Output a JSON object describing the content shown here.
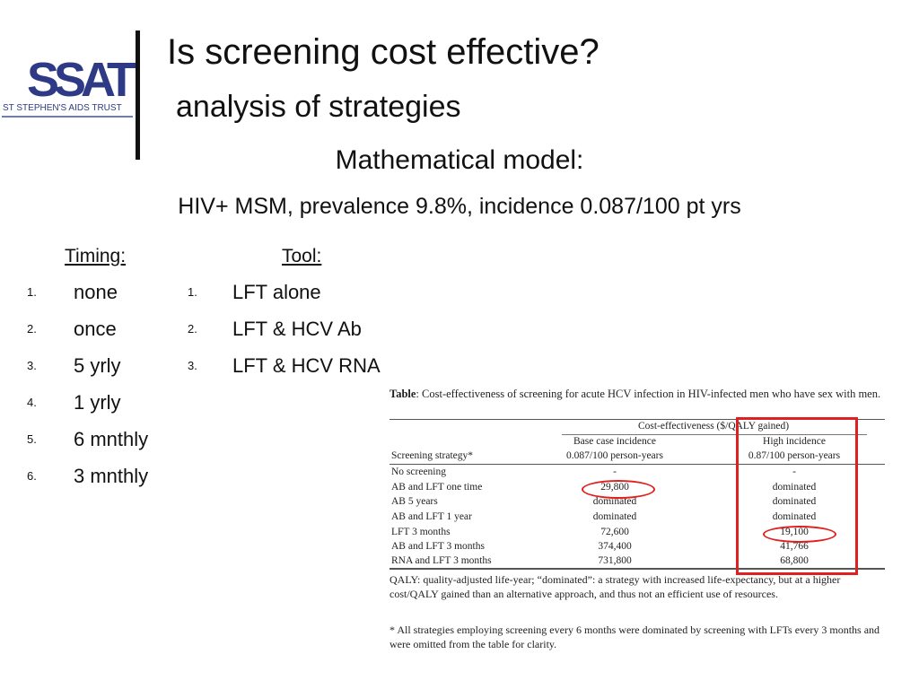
{
  "logo": {
    "letters": "SSAT",
    "tagline": "ST STEPHEN'S AIDS TRUST"
  },
  "title": "Is screening cost effective?",
  "subtitle": "analysis of strategies",
  "model_heading": "Mathematical model:",
  "model_details": "HIV+ MSM, prevalence 9.8%, incidence 0.087/100 pt yrs",
  "timing": {
    "heading": "Timing:",
    "items": [
      {
        "num": "1.",
        "text": "none"
      },
      {
        "num": "2.",
        "text": "once"
      },
      {
        "num": "3.",
        "text": "5 yrly"
      },
      {
        "num": "4.",
        "text": "1 yrly"
      },
      {
        "num": "5.",
        "text": "6 mnthly"
      },
      {
        "num": "6.",
        "text": "3 mnthly"
      }
    ]
  },
  "tool": {
    "heading": "Tool:",
    "items": [
      {
        "num": "1.",
        "text": "LFT alone"
      },
      {
        "num": "2.",
        "text": "LFT & HCV Ab"
      },
      {
        "num": "3.",
        "text": "LFT & HCV RNA"
      }
    ]
  },
  "table": {
    "caption_bold": "Table",
    "caption_rest": ": Cost-effectiveness of screening for acute HCV infection in HIV-infected men who have sex with men.",
    "group_header": "Cost-effectiveness ($/QALY gained)",
    "col1": "Screening strategy*",
    "col2_line1": "Base case incidence",
    "col2_line2": "0.087/100 person-years",
    "col3_line1": "High incidence",
    "col3_line2": "0.87/100 person-years",
    "rows": [
      {
        "strategy": "No screening",
        "base": "-",
        "high": "-"
      },
      {
        "strategy": "AB and LFT one time",
        "base": "29,800",
        "high": "dominated"
      },
      {
        "strategy": "AB 5 years",
        "base": "dominated",
        "high": "dominated"
      },
      {
        "strategy": "AB and LFT 1 year",
        "base": "dominated",
        "high": "dominated"
      },
      {
        "strategy": "LFT 3 months",
        "base": "72,600",
        "high": "19,100"
      },
      {
        "strategy": "AB and LFT 3 months",
        "base": "374,400",
        "high": "41,766"
      },
      {
        "strategy": "RNA and LFT 3 months",
        "base": "731,800",
        "high": "68,800"
      }
    ],
    "footnote1": "QALY: quality-adjusted life-year; “dominated”: a strategy with increased life-expectancy, but at a higher cost/QALY gained than an alternative approach, and thus not an efficient use of resources.",
    "footnote2": "* All strategies employing screening every 6 months were dominated by screening with LFTs every 3 months and were omitted from the table for clarity."
  },
  "highlight_color": "#e0201e",
  "brand_color": "#2e3a86"
}
